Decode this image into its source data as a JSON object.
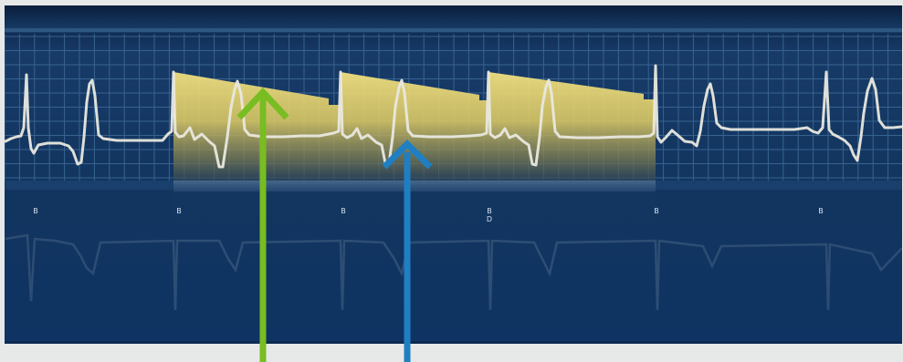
{
  "image": {
    "subject": "ecg-pacing-illustration",
    "colors": {
      "page_bg": "#e7e8e8",
      "monitor_bg_top": "#0b2446",
      "monitor_bg_mid": "#123a69",
      "monitor_bg_bottom": "#0f3463",
      "grid": "#3f6b98",
      "trace": "#e9e8df",
      "pacing_fill_top": "#e9d978",
      "pacing_fill_bottom": "#293f4f",
      "green_arrow": "#78bd22",
      "blue_arrow": "#1f7fc2"
    }
  },
  "markers": {
    "b1": "B",
    "b2": "B",
    "b3": "B",
    "b4": "B",
    "b4_sub": "D",
    "b5": "B",
    "b6": "B"
  },
  "arrows": {
    "left_icon": "arrow-up-icon",
    "right_icon": "arrow-up-icon"
  }
}
